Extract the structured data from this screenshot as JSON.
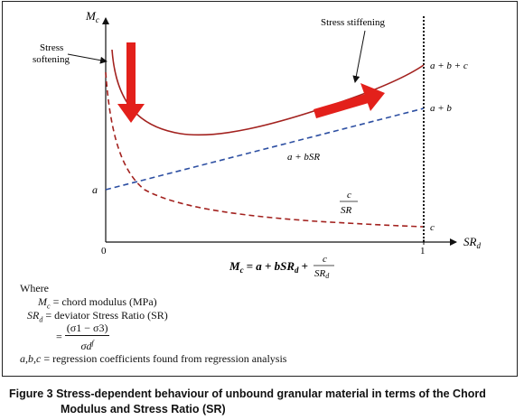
{
  "axes": {
    "y_label": "M",
    "y_label_sub": "c",
    "x_label": "SR",
    "x_label_sub": "d",
    "origin_label": "0",
    "x_end_label": "1",
    "y_intercept_label": "a"
  },
  "annotations": {
    "stress_softening_line1": "Stress",
    "stress_softening_line2": "softening",
    "stress_stiffening": "Stress stiffening",
    "label_abc": "a + b + c",
    "label_ab": "a + b",
    "label_c_end": "c",
    "label_linear": "a + bSR",
    "frac_num": "c",
    "frac_den": "SR"
  },
  "main_equation": {
    "lhs": "M",
    "lhs_sub": "c",
    "rhs_part": "= a + bSR",
    "rhs_sub": "d",
    "plus": "+",
    "frac_num": "c",
    "frac_den": "SR",
    "frac_den_sub": "d"
  },
  "where": {
    "heading": "Where",
    "row1_sym": "M",
    "row1_sub": "c",
    "row1_text": "= chord modulus (MPa)",
    "row2_sym": "SR",
    "row2_sub": "d",
    "row2_text": "= deviator Stress Ratio (SR)",
    "row3_eq": "=",
    "row3_num": "(σ1 − σ3)",
    "row3_den": "σd",
    "row3_den_sup": "f",
    "row4_sym": "a,b,c",
    "row4_text": "= regression coefficients found from regression analysis"
  },
  "caption": {
    "line1": "Figure 3 Stress-dependent behaviour of unbound granular material in terms of the Chord",
    "line2": "Modulus and Stress Ratio (SR)"
  },
  "colors": {
    "curve": "#a3221f",
    "linear": "#2d4fa2",
    "arrow": "#e3201b",
    "axis": "#111111"
  }
}
